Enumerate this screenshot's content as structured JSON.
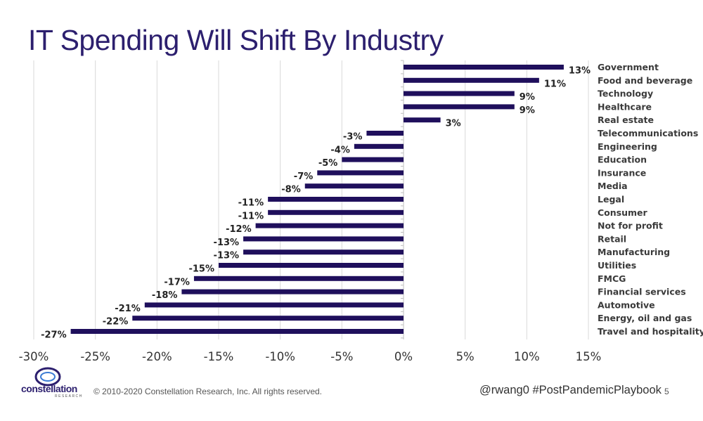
{
  "slide": {
    "title": "IT Spending Will Shift By Industry",
    "copyright": "© 2010-2020 Constellation Research, Inc. All rights reserved.",
    "handle": "@rwang0 #PostPandemicPlaybook",
    "page_number": "5",
    "logo_text": "constellation",
    "logo_sub": "RESEARCH"
  },
  "colors": {
    "bar": "#1f0f5c",
    "title": "#2c1f6e",
    "grid": "#d9d9d9"
  },
  "chart_data": {
    "type": "bar",
    "orientation": "horizontal",
    "title": "IT Spending Will Shift By Industry",
    "xlabel": "",
    "ylabel": "",
    "xlim": [
      -30,
      15
    ],
    "xticks": [
      -30,
      -25,
      -20,
      -15,
      -10,
      -5,
      0,
      5,
      10,
      15
    ],
    "xtick_labels": [
      "-30%",
      "-25%",
      "-20%",
      "-15%",
      "-10%",
      "-5%",
      "0%",
      "5%",
      "10%",
      "15%"
    ],
    "grid": "vertical",
    "categories": [
      "Government",
      "Food and beverage",
      "Technology",
      "Healthcare",
      "Real estate",
      "Telecommunications",
      "Engineering",
      "Education",
      "Insurance",
      "Media",
      "Legal",
      "Consumer",
      "Not for profit",
      "Retail",
      "Manufacturing",
      "Utilities",
      "FMCG",
      "Financial services",
      "Automotive",
      "Energy, oil and gas",
      "Travel and hospitality"
    ],
    "values": [
      13,
      11,
      9,
      9,
      3,
      -3,
      -4,
      -5,
      -7,
      -8,
      -11,
      -11,
      -12,
      -13,
      -13,
      -15,
      -17,
      -18,
      -21,
      -22,
      -27
    ],
    "value_labels": [
      "13%",
      "11%",
      "9%",
      "9%",
      "3%",
      "-3%",
      "-4%",
      "-5%",
      "-7%",
      "-8%",
      "-11%",
      "-11%",
      "-12%",
      "-13%",
      "-13%",
      "-15%",
      "-17%",
      "-18%",
      "-21%",
      "-22%",
      "-27%"
    ]
  }
}
